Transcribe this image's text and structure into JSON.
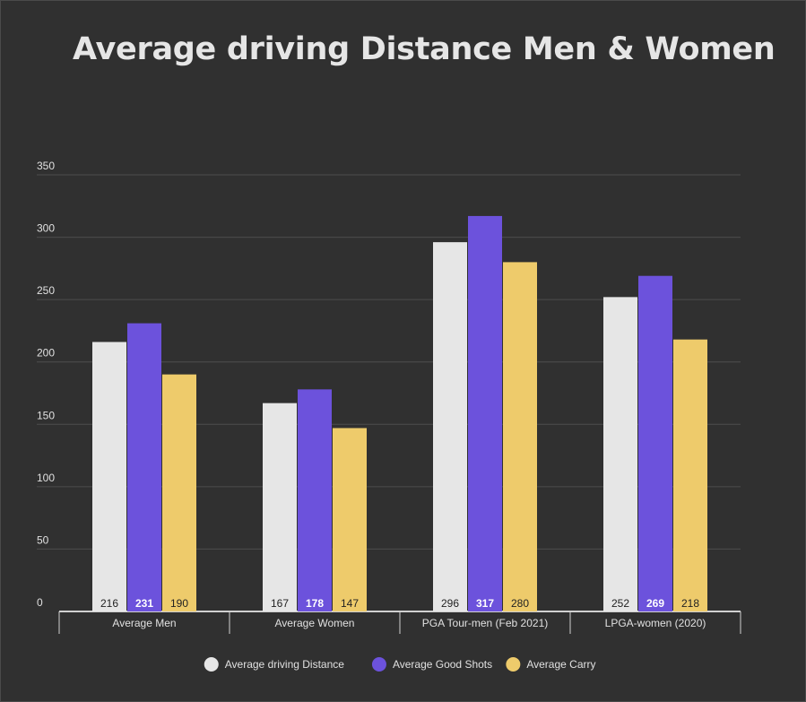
{
  "chart_data": {
    "type": "bar",
    "title": "Average driving Distance Men & Women",
    "xlabel": "",
    "ylabel": "",
    "ylim": [
      0,
      350
    ],
    "yticks": [
      0,
      50,
      100,
      150,
      200,
      250,
      300,
      350
    ],
    "grid": true,
    "legend_position": "bottom",
    "categories": [
      "Average Men",
      "Average Women",
      "PGA Tour-men (Feb 2021)",
      "LPGA-women (2020)"
    ],
    "series": [
      {
        "name": "Average driving Distance",
        "color": "#e6e6e6",
        "label_color": "#222222",
        "values": [
          216,
          167,
          296,
          252
        ]
      },
      {
        "name": "Average Good Shots",
        "color": "#6c52dc",
        "label_color": "#ffffff",
        "values": [
          231,
          178,
          317,
          269
        ]
      },
      {
        "name": "Average Carry",
        "color": "#eecb6b",
        "label_color": "#222222",
        "values": [
          190,
          147,
          280,
          218
        ]
      }
    ]
  }
}
